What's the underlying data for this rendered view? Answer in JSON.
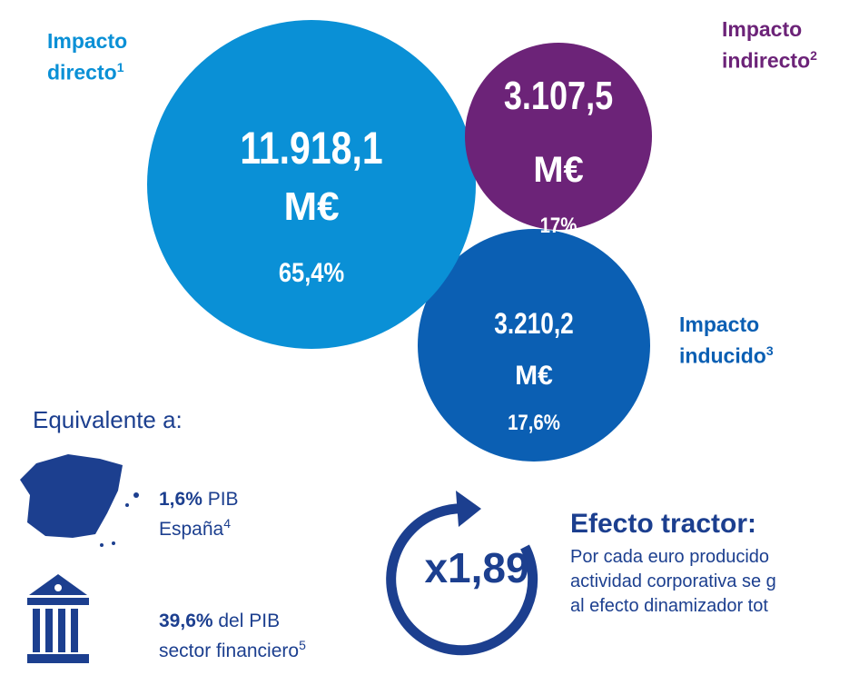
{
  "bubbles": [
    {
      "label_lines": [
        "Impacto",
        "directo"
      ],
      "sup": "1",
      "value": "11.918,1",
      "unit": "M€",
      "share": "65,4%"
    },
    {
      "label_lines": [
        "Impacto",
        "indirecto"
      ],
      "sup": "2",
      "value": "3.107,5",
      "unit": "M€",
      "share": "17%"
    },
    {
      "label_lines": [
        "Impacto",
        "inducido"
      ],
      "sup": "3",
      "value": "3.210,2",
      "unit": "M€",
      "share": "17,6%"
    }
  ],
  "equivalent": {
    "title": "Equivalente a:",
    "items": [
      {
        "bold": "1,6%",
        "text1": " PIB",
        "text2": "España",
        "sup": "4"
      },
      {
        "bold": "39,6%",
        "text1": " del PIB",
        "text2": "sector financiero",
        "sup": "5"
      }
    ]
  },
  "tractor": {
    "multiplier": "x1,89",
    "title": "Efecto tractor:",
    "lines": [
      "Por cada euro producido",
      "actividad corporativa se g",
      "al efecto dinamizador tot"
    ]
  }
}
